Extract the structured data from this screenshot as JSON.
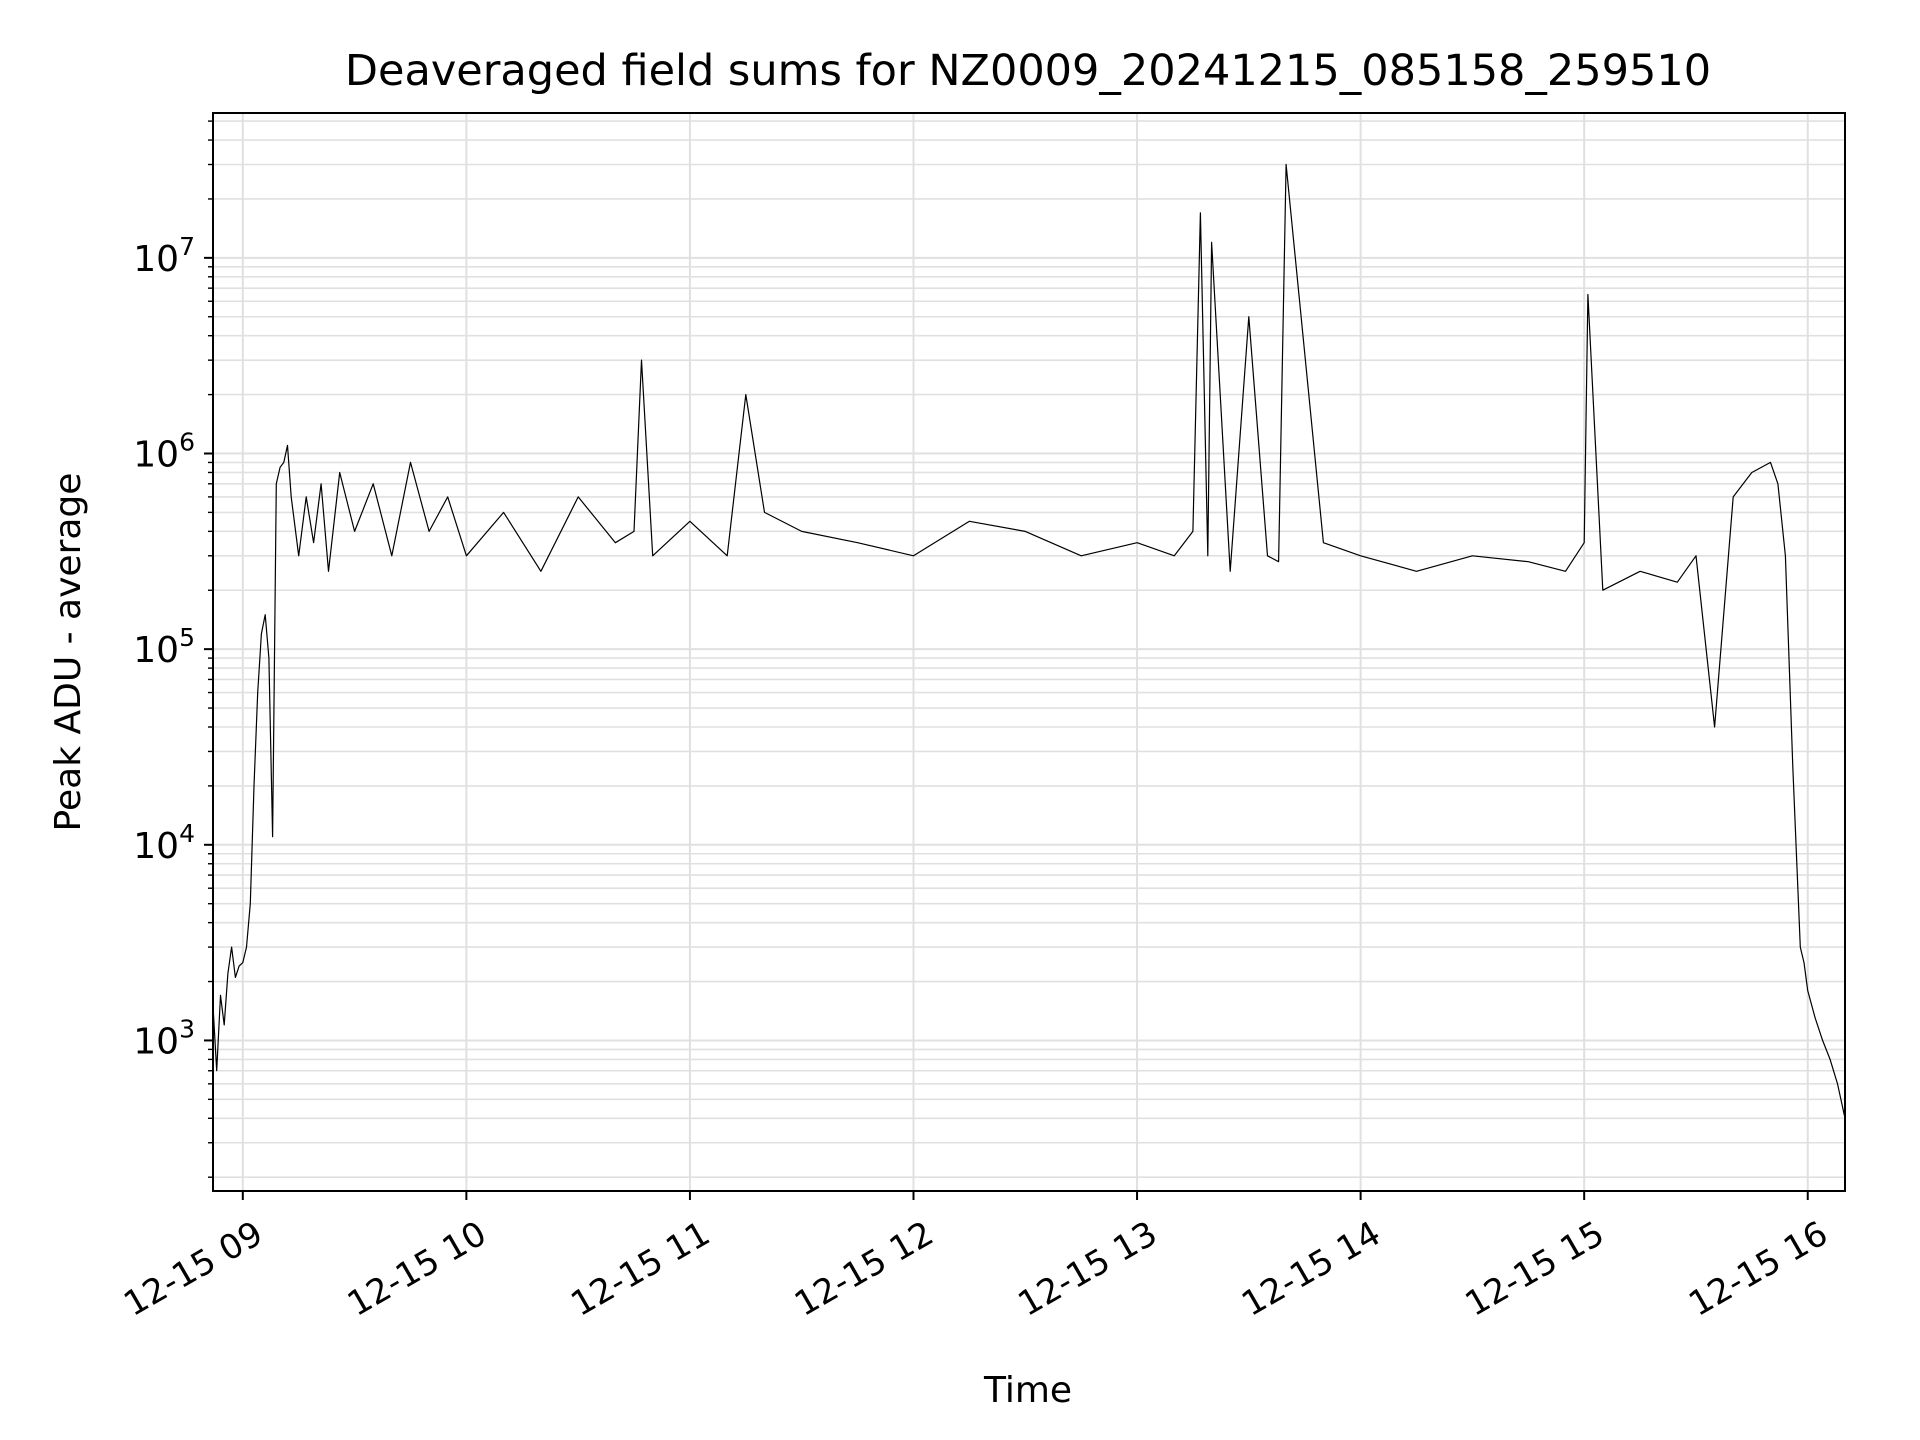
{
  "chart_data": {
    "type": "line",
    "title": "Deaveraged field sums for NZ0009_20241215_085158_259510",
    "xlabel": "Time",
    "ylabel": "Peak ADU - average",
    "yscale": "log",
    "grid": true,
    "grid_minor": true,
    "line_color": "#000000",
    "grid_color": "#e0e0e0",
    "xlim": [
      "12-15 08:52",
      "12-15 16:10"
    ],
    "ylim": [
      170,
      55000000
    ],
    "xticks": [
      "12-15 09",
      "12-15 10",
      "12-15 11",
      "12-15 12",
      "12-15 13",
      "12-15 14",
      "12-15 15",
      "12-15 16"
    ],
    "yticks": [
      {
        "base": "10",
        "exp": "3",
        "value": 1000
      },
      {
        "base": "10",
        "exp": "4",
        "value": 10000
      },
      {
        "base": "10",
        "exp": "5",
        "value": 100000
      },
      {
        "base": "10",
        "exp": "6",
        "value": 1000000
      },
      {
        "base": "10",
        "exp": "7",
        "value": 10000000
      }
    ],
    "series": [
      {
        "x": [
          "12-15 08:52",
          "12-15 08:53",
          "12-15 08:54",
          "12-15 08:55",
          "12-15 08:56",
          "12-15 08:57",
          "12-15 08:58",
          "12-15 08:59",
          "12-15 09:00",
          "12-15 09:01",
          "12-15 09:02",
          "12-15 09:03",
          "12-15 09:04",
          "12-15 09:05",
          "12-15 09:06",
          "12-15 09:07",
          "12-15 09:08",
          "12-15 09:09",
          "12-15 09:10",
          "12-15 09:11",
          "12-15 09:12",
          "12-15 09:13",
          "12-15 09:15",
          "12-15 09:17",
          "12-15 09:19",
          "12-15 09:21",
          "12-15 09:23",
          "12-15 09:26",
          "12-15 09:30",
          "12-15 09:35",
          "12-15 09:40",
          "12-15 09:45",
          "12-15 09:50",
          "12-15 09:55",
          "12-15 10:00",
          "12-15 10:10",
          "12-15 10:20",
          "12-15 10:30",
          "12-15 10:40",
          "12-15 10:45",
          "12-15 10:47",
          "12-15 10:50",
          "12-15 11:00",
          "12-15 11:10",
          "12-15 11:15",
          "12-15 11:20",
          "12-15 11:30",
          "12-15 11:45",
          "12-15 12:00",
          "12-15 12:15",
          "12-15 12:30",
          "12-15 12:45",
          "12-15 13:00",
          "12-15 13:10",
          "12-15 13:15",
          "12-15 13:17",
          "12-15 13:19",
          "12-15 13:20",
          "12-15 13:25",
          "12-15 13:30",
          "12-15 13:35",
          "12-15 13:38",
          "12-15 13:40",
          "12-15 13:50",
          "12-15 14:00",
          "12-15 14:15",
          "12-15 14:30",
          "12-15 14:45",
          "12-15 14:55",
          "12-15 15:00",
          "12-15 15:01",
          "12-15 15:05",
          "12-15 15:15",
          "12-15 15:25",
          "12-15 15:30",
          "12-15 15:35",
          "12-15 15:40",
          "12-15 15:45",
          "12-15 15:50",
          "12-15 15:52",
          "12-15 15:54",
          "12-15 15:56",
          "12-15 15:58",
          "12-15 15:59",
          "12-15 16:00",
          "12-15 16:02",
          "12-15 16:04",
          "12-15 16:06",
          "12-15 16:08",
          "12-15 16:10"
        ],
        "y": [
          1500,
          700,
          1700,
          1200,
          2200,
          3000,
          2100,
          2400,
          2500,
          3000,
          5000,
          20000,
          60000,
          120000,
          150000,
          90000,
          11000,
          700000,
          850000,
          900000,
          1100000,
          600000,
          300000,
          600000,
          350000,
          700000,
          250000,
          800000,
          400000,
          700000,
          300000,
          900000,
          400000,
          600000,
          300000,
          500000,
          250000,
          600000,
          350000,
          400000,
          3000000,
          300000,
          450000,
          300000,
          2000000,
          500000,
          400000,
          350000,
          300000,
          450000,
          400000,
          300000,
          350000,
          300000,
          400000,
          17000000,
          300000,
          12000000,
          250000,
          5000000,
          300000,
          280000,
          30000000,
          350000,
          300000,
          250000,
          300000,
          280000,
          250000,
          350000,
          6500000,
          200000,
          250000,
          220000,
          300000,
          40000,
          600000,
          800000,
          900000,
          700000,
          300000,
          25000,
          3000,
          2500,
          1800,
          1300,
          1000,
          800,
          600,
          400
        ]
      }
    ]
  }
}
